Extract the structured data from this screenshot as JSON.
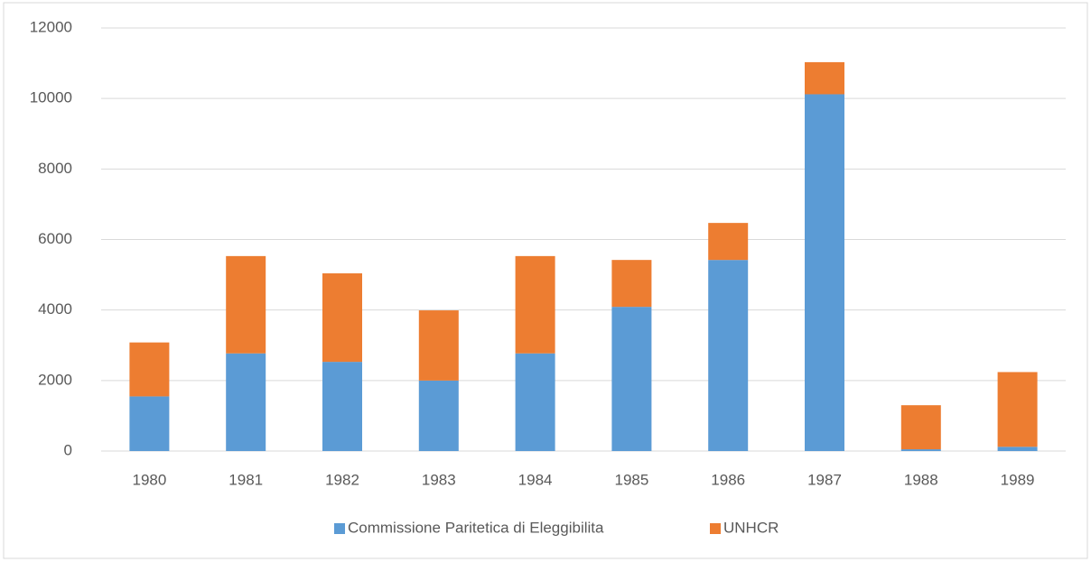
{
  "chart_data": {
    "type": "stacked_bar",
    "categories": [
      "1980",
      "1981",
      "1982",
      "1983",
      "1984",
      "1985",
      "1986",
      "1987",
      "1988",
      "1989"
    ],
    "series": [
      {
        "name": "Commissione Paritetica di Eleggibilita",
        "color": "#5b9bd5",
        "values": [
          1550,
          2770,
          2530,
          2000,
          2770,
          4090,
          5420,
          10120,
          50,
          120
        ]
      },
      {
        "name": "UNHCR",
        "color": "#ed7d31",
        "values": [
          1530,
          2760,
          2510,
          1990,
          2760,
          1330,
          1050,
          910,
          1250,
          2120
        ]
      }
    ],
    "ylim": [
      0,
      12000
    ],
    "yticks": [
      0,
      2000,
      4000,
      6000,
      8000,
      10000,
      12000
    ],
    "grid": true,
    "legend": "bottom"
  }
}
